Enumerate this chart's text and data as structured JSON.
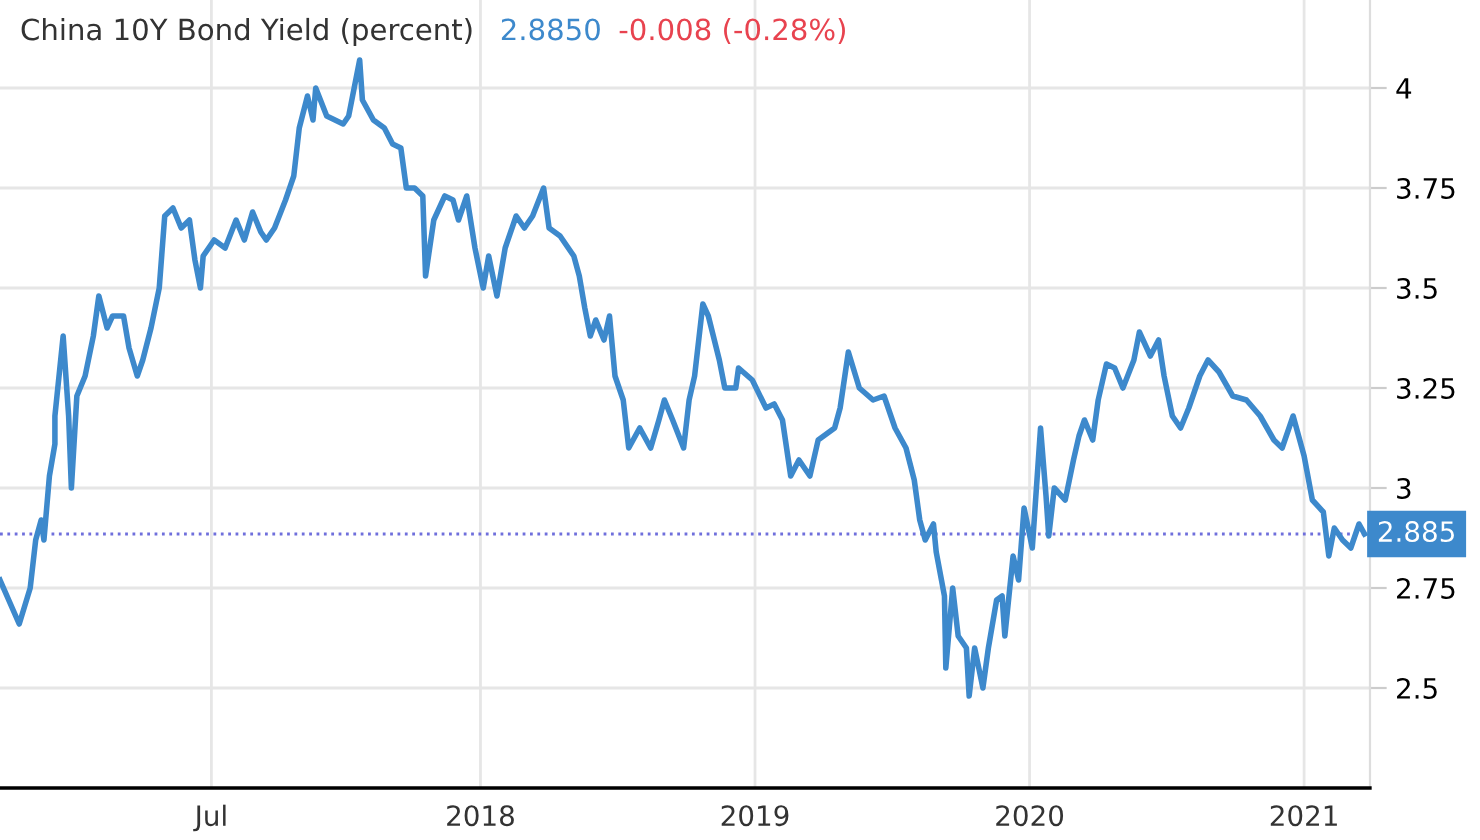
{
  "chart_data": {
    "type": "line",
    "title": "China 10Y Bond Yield (percent)",
    "annotations": [
      "2.8850",
      "-0.008 (-0.28%)"
    ],
    "x": [
      2016.25,
      2016.32,
      2016.36,
      2016.38,
      2016.4,
      2016.41,
      2016.43,
      2016.45,
      2016.45,
      2016.48,
      2016.5,
      2016.51,
      2016.53,
      2016.56,
      2016.59,
      2016.61,
      2016.64,
      2016.66,
      2016.7,
      2016.72,
      2016.75,
      2016.77,
      2016.8,
      2016.83,
      2016.85,
      2016.88,
      2016.91,
      2016.94,
      2016.96,
      2016.98,
      2016.99,
      2017.03,
      2017.07,
      2017.11,
      2017.14,
      2017.17,
      2017.2,
      2017.22,
      2017.25,
      2017.29,
      2017.32,
      2017.34,
      2017.37,
      2017.39,
      2017.4,
      2017.44,
      2017.47,
      2017.5,
      2017.52,
      2017.54,
      2017.56,
      2017.57,
      2017.61,
      2017.65,
      2017.68,
      2017.71,
      2017.73,
      2017.76,
      2017.79,
      2017.8,
      2017.83,
      2017.87,
      2017.9,
      2017.92,
      2017.95,
      2017.98,
      2018.01,
      2018.03,
      2018.06,
      2018.09,
      2018.13,
      2018.16,
      2018.19,
      2018.23,
      2018.25,
      2018.29,
      2018.34,
      2018.36,
      2018.38,
      2018.4,
      2018.42,
      2018.45,
      2018.47,
      2018.49,
      2018.52,
      2018.54,
      2018.58,
      2018.62,
      2018.65,
      2018.67,
      2018.7,
      2018.74,
      2018.76,
      2018.78,
      2018.81,
      2018.83,
      2018.87,
      2018.89,
      2018.93,
      2018.94,
      2018.99,
      2019.04,
      2019.07,
      2019.1,
      2019.13,
      2019.16,
      2019.2,
      2019.23,
      2019.29,
      2019.31,
      2019.34,
      2019.38,
      2019.43,
      2019.47,
      2019.51,
      2019.55,
      2019.58,
      2019.6,
      2019.62,
      2019.65,
      2019.66,
      2019.69,
      2019.695,
      2019.72,
      2019.74,
      2019.77,
      2019.78,
      2019.8,
      2019.83,
      2019.85,
      2019.88,
      2019.9,
      2019.91,
      2019.94,
      2019.96,
      2019.98,
      2020.01,
      2020.04,
      2020.06,
      2020.07,
      2020.09,
      2020.13,
      2020.16,
      2020.18,
      2020.2,
      2020.23,
      2020.25,
      2020.28,
      2020.31,
      2020.34,
      2020.38,
      2020.4,
      2020.44,
      2020.47,
      2020.49,
      2020.52,
      2020.55,
      2020.58,
      2020.62,
      2020.65,
      2020.69,
      2020.74,
      2020.79,
      2020.84,
      2020.89,
      2020.92,
      2020.96,
      2020.98,
      2021.0,
      2021.03,
      2021.07,
      2021.09,
      2021.11,
      2021.14,
      2021.17,
      2021.2,
      2021.22
    ],
    "series": [
      {
        "color": "#3d89cc",
        "values": [
          2.77,
          2.66,
          2.75,
          2.87,
          2.92,
          2.87,
          3.03,
          3.11,
          3.18,
          3.38,
          3.18,
          3.0,
          3.23,
          3.28,
          3.38,
          3.48,
          3.4,
          3.43,
          3.43,
          3.35,
          3.28,
          3.32,
          3.4,
          3.5,
          3.68,
          3.7,
          3.65,
          3.67,
          3.57,
          3.5,
          3.58,
          3.62,
          3.6,
          3.67,
          3.62,
          3.69,
          3.64,
          3.62,
          3.65,
          3.72,
          3.78,
          3.9,
          3.98,
          3.92,
          4.0,
          3.93,
          3.92,
          3.91,
          3.93,
          4.0,
          4.07,
          3.97,
          3.92,
          3.9,
          3.86,
          3.85,
          3.75,
          3.75,
          3.73,
          3.53,
          3.67,
          3.73,
          3.72,
          3.67,
          3.73,
          3.6,
          3.5,
          3.58,
          3.48,
          3.6,
          3.68,
          3.65,
          3.68,
          3.75,
          3.65,
          3.63,
          3.58,
          3.53,
          3.45,
          3.38,
          3.42,
          3.37,
          3.43,
          3.28,
          3.22,
          3.1,
          3.15,
          3.1,
          3.17,
          3.22,
          3.17,
          3.1,
          3.22,
          3.28,
          3.46,
          3.43,
          3.32,
          3.25,
          3.25,
          3.3,
          3.27,
          3.2,
          3.21,
          3.17,
          3.03,
          3.07,
          3.03,
          3.12,
          3.15,
          3.2,
          3.34,
          3.25,
          3.22,
          3.23,
          3.15,
          3.1,
          3.02,
          2.92,
          2.87,
          2.91,
          2.84,
          2.73,
          2.55,
          2.75,
          2.63,
          2.6,
          2.48,
          2.6,
          2.5,
          2.6,
          2.72,
          2.73,
          2.63,
          2.83,
          2.77,
          2.95,
          2.85,
          3.15,
          2.98,
          2.88,
          3.0,
          2.97,
          3.07,
          3.13,
          3.17,
          3.12,
          3.22,
          3.31,
          3.3,
          3.25,
          3.32,
          3.39,
          3.33,
          3.37,
          3.28,
          3.18,
          3.15,
          3.2,
          3.28,
          3.32,
          3.29,
          3.23,
          3.22,
          3.18,
          3.12,
          3.1,
          3.18,
          3.13,
          3.08,
          2.97,
          2.94,
          2.83,
          2.9,
          2.87,
          2.85,
          2.91,
          2.885
        ]
      }
    ],
    "xlim": [
      2016.25,
      2021.24
    ],
    "xticks": [
      {
        "value": 2017.02,
        "label": "Jul"
      },
      2018,
      2019,
      2020,
      2021
    ],
    "ylim": [
      2.25,
      4.22
    ],
    "yticks": [
      2.5,
      2.75,
      3,
      3.25,
      3.5,
      3.75,
      4
    ],
    "grid": true,
    "ref_lines": [
      {
        "axis": "y",
        "value": 2.885,
        "label": "2.885",
        "color": "#6f6fdc",
        "line_style": "dotted"
      }
    ]
  }
}
